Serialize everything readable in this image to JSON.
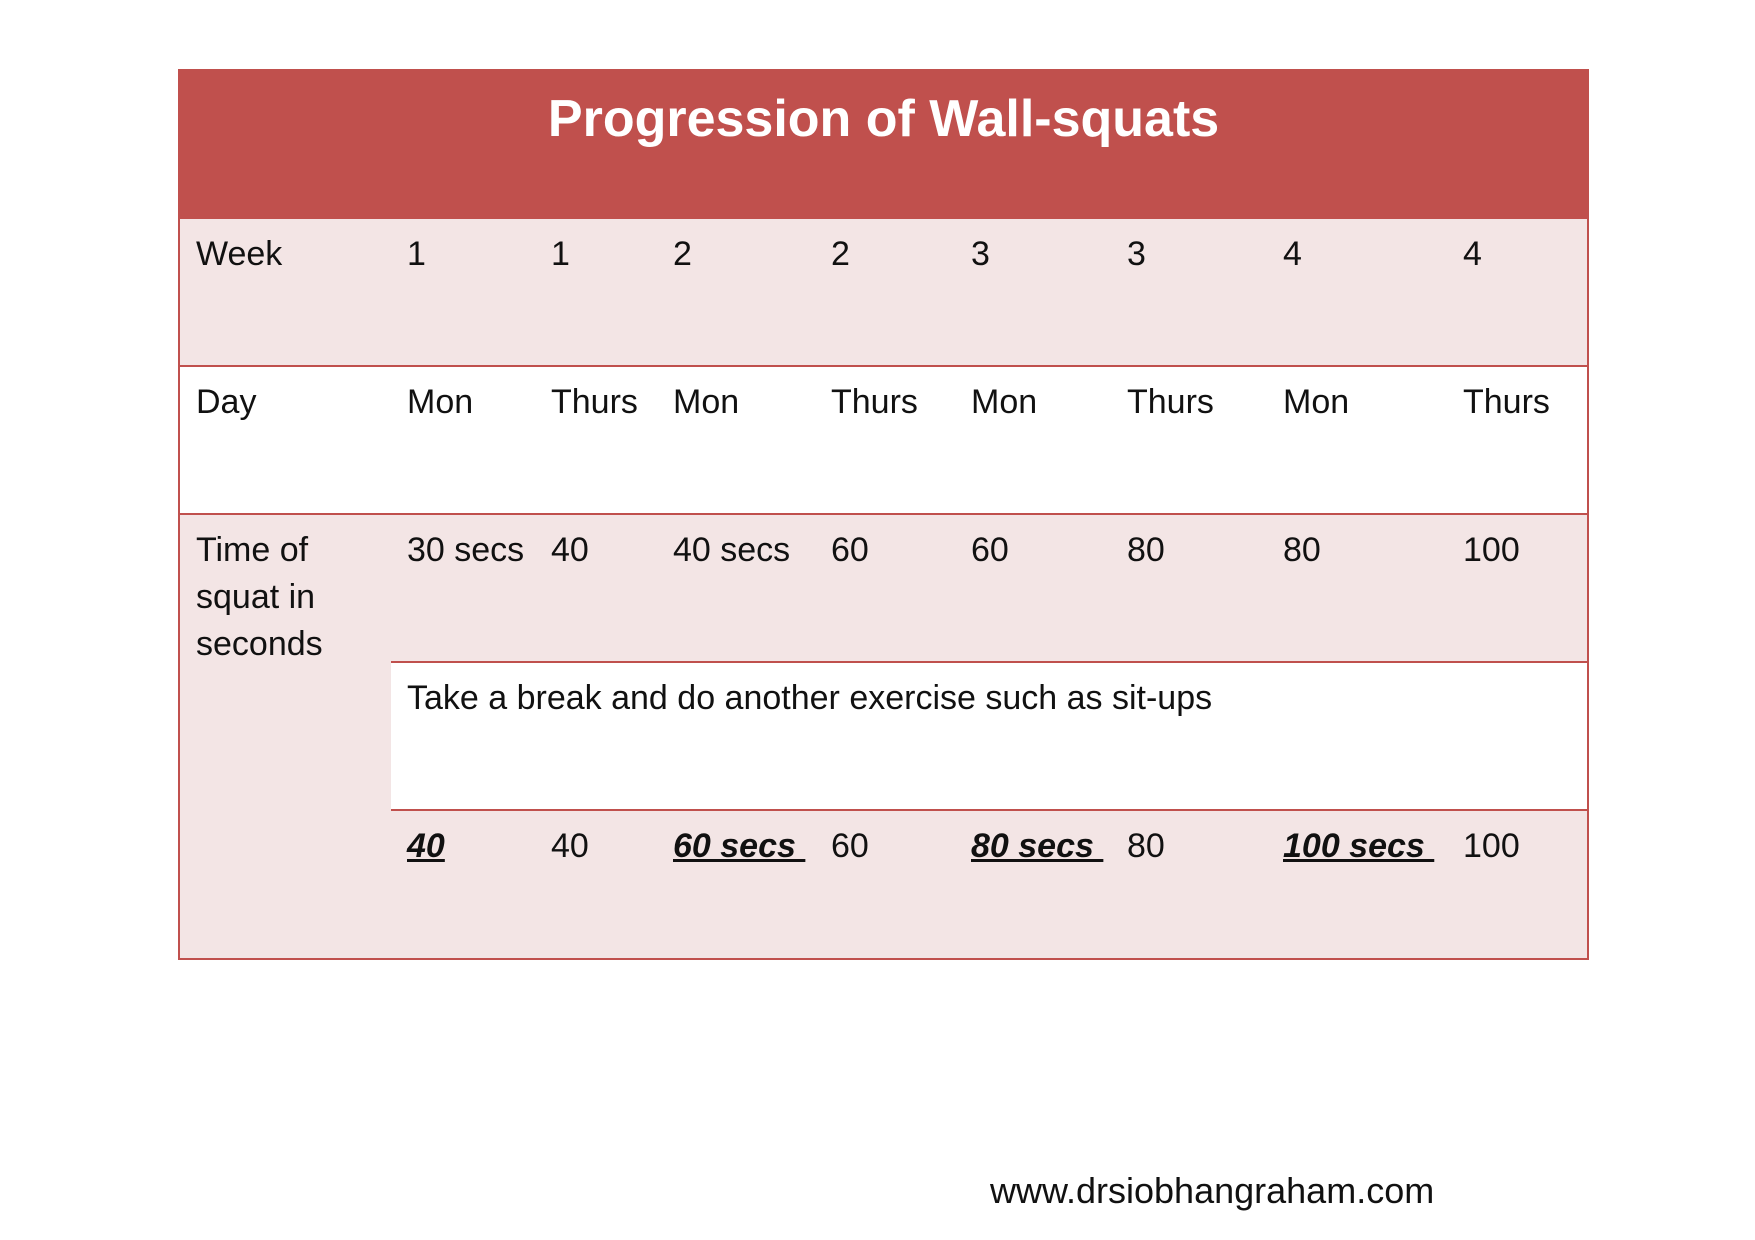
{
  "title": "Progression of Wall-squats",
  "week_row": {
    "label": "Week",
    "cells": [
      "1",
      "1",
      "2",
      "2",
      "3",
      "3",
      "4",
      "4"
    ]
  },
  "day_row": {
    "label": "Day",
    "cells": [
      "Mon",
      "Thurs",
      "Mon",
      "Thurs",
      "Mon",
      "Thurs",
      "Mon",
      "Thurs"
    ]
  },
  "time_rows": {
    "label": "Time of squat in seconds",
    "first_set": [
      "30 secs",
      "40",
      "40 secs",
      "60",
      "60",
      "80",
      "80",
      "100"
    ],
    "break_note": "Take a break and do another exercise such as sit-ups",
    "second_set": [
      "40",
      "40",
      "60 secs ",
      "60",
      "80 secs ",
      "80",
      "100 secs ",
      "100"
    ],
    "second_set_emphasized": [
      true,
      false,
      true,
      false,
      true,
      false,
      true,
      false
    ]
  },
  "footer": {
    "website": "www.drsiobhangraham.com"
  },
  "colors": {
    "header_bg": "#c0504d",
    "header_text": "#ffffff",
    "band_pink": "#f3e5e5",
    "border": "#c0504d"
  }
}
